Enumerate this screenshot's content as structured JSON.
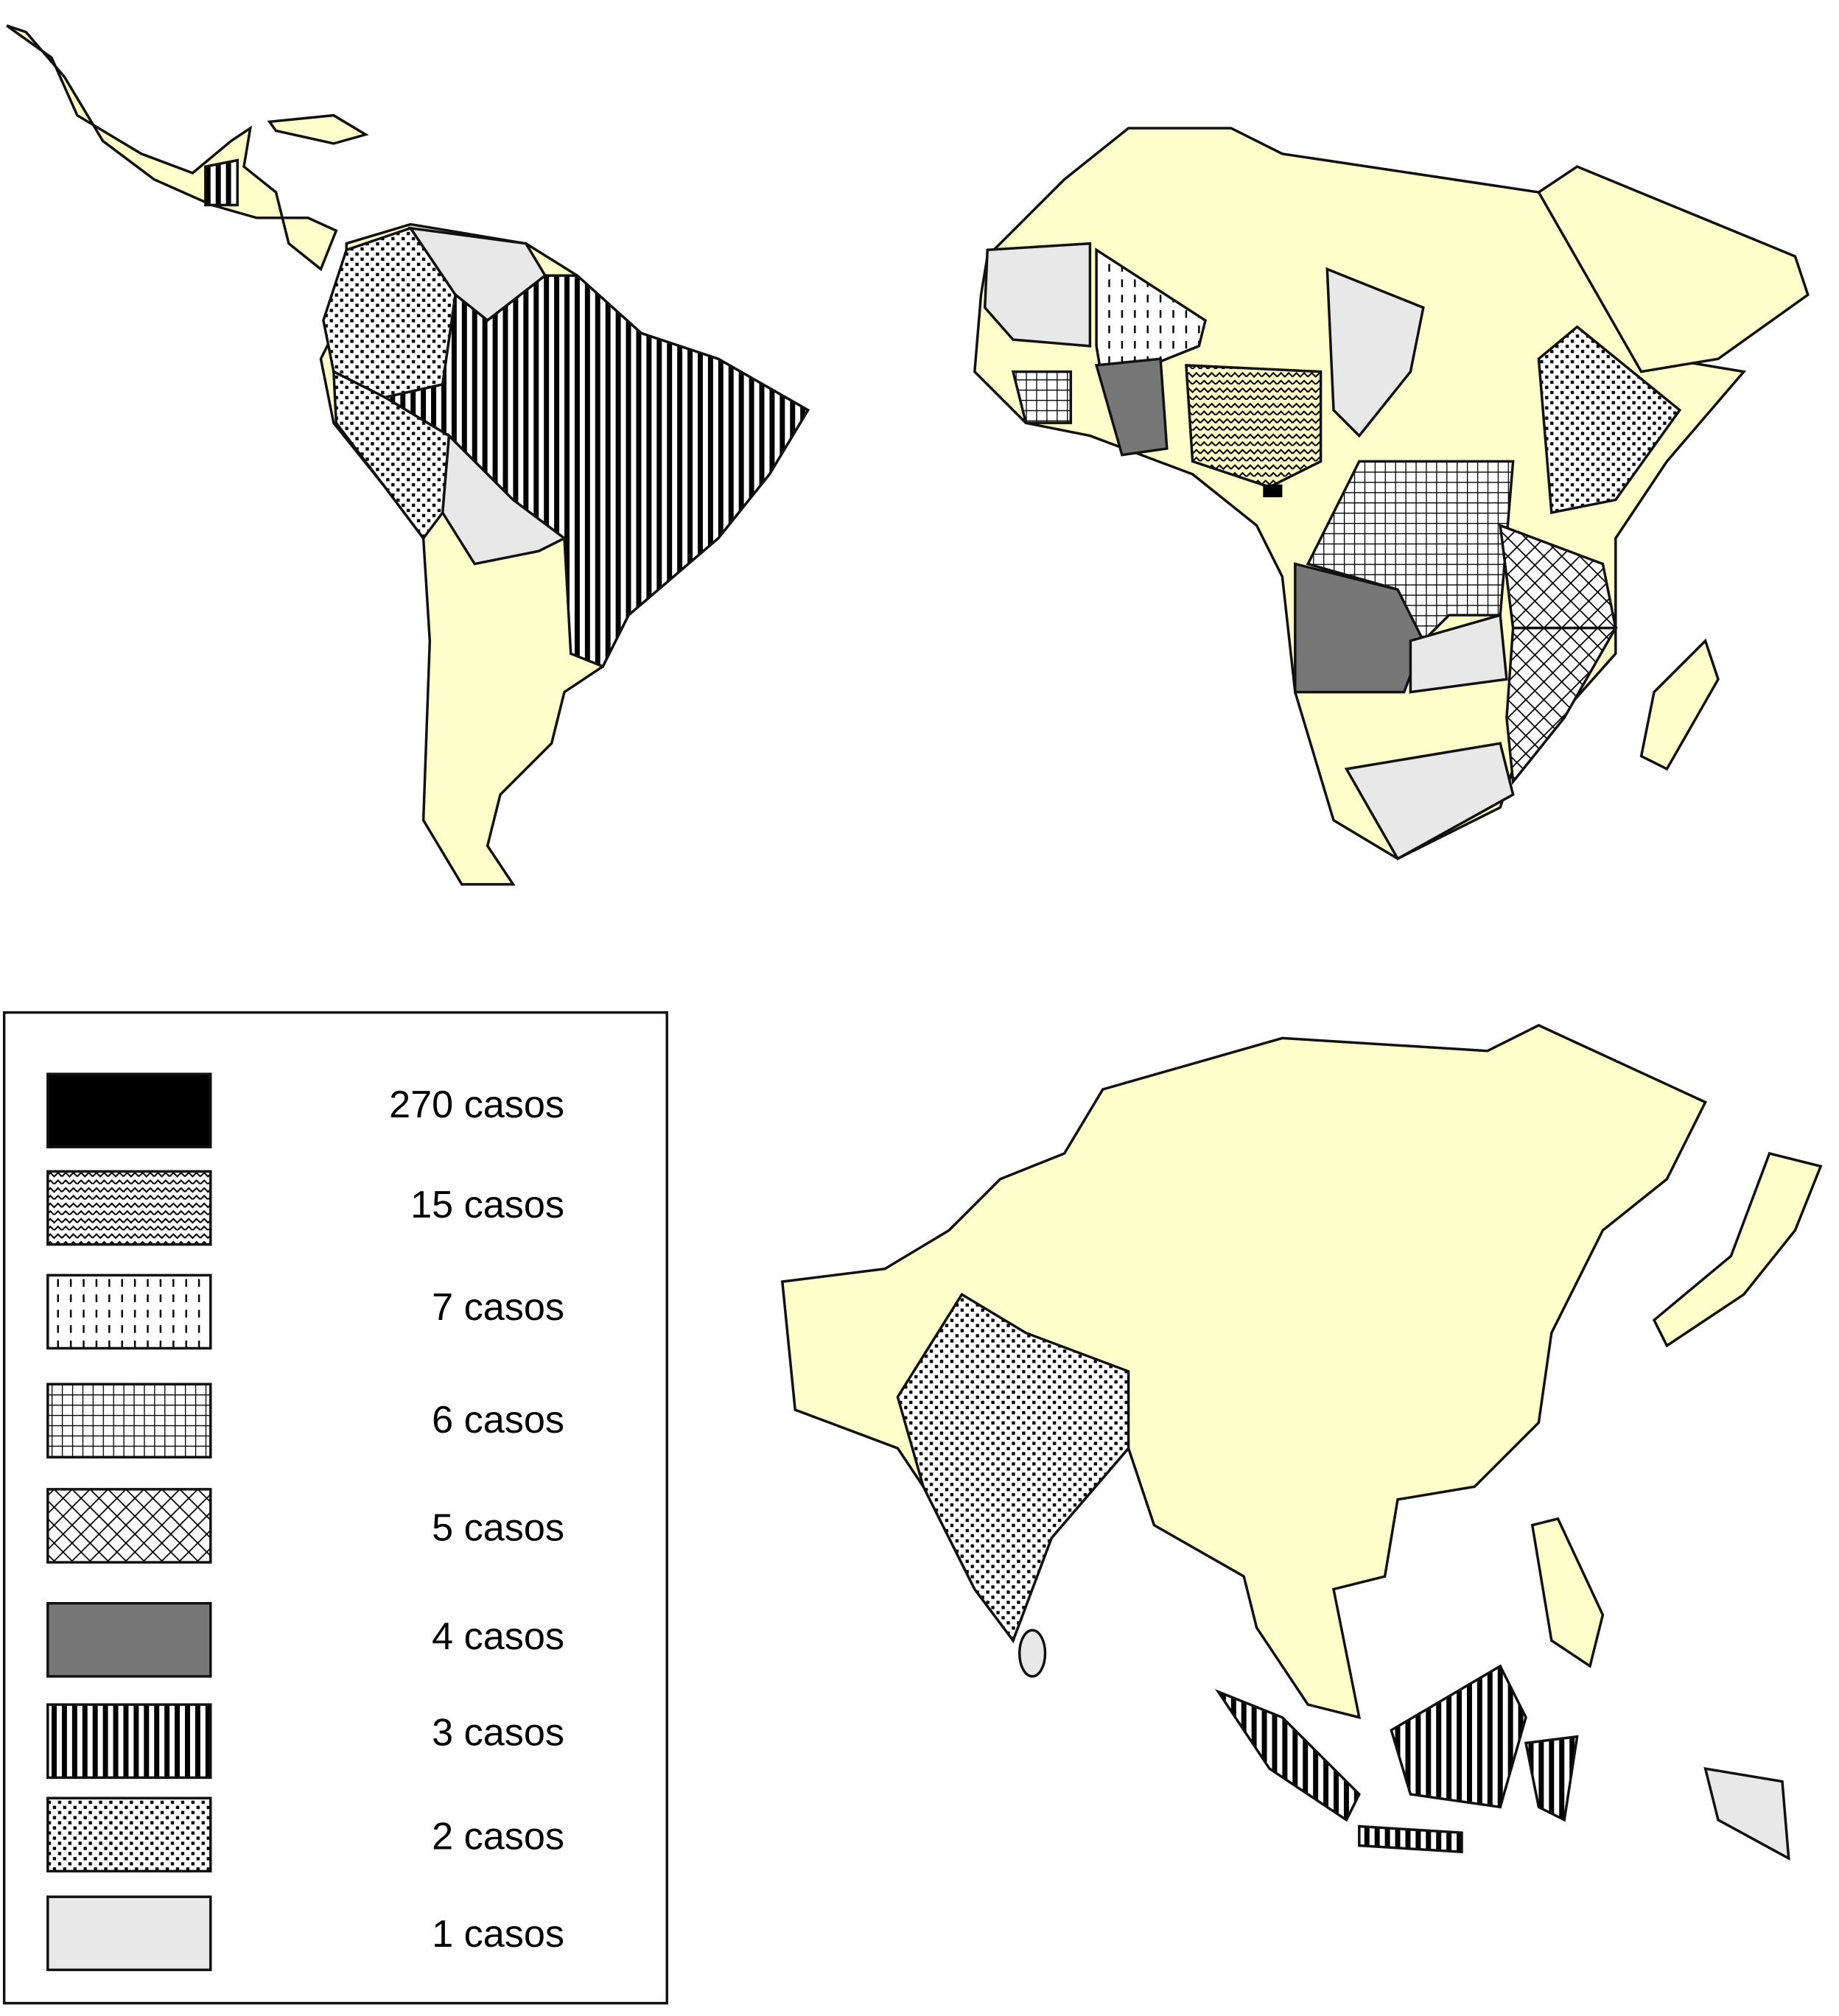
{
  "legend": {
    "items": [
      "270 casos",
      "15 casos",
      "7 casos",
      "6 casos",
      "5 casos",
      "4 casos",
      "3 casos",
      "2 casos",
      "1 casos"
    ]
  }
}
